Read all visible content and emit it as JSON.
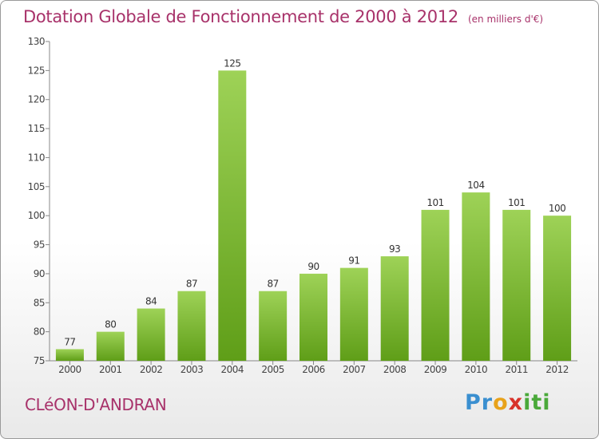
{
  "chart_data": {
    "type": "bar",
    "title": "Dotation Globale de Fonctionnement de 2000 à 2012",
    "subtitle": "(en milliers d'€)",
    "categories": [
      "2000",
      "2001",
      "2002",
      "2003",
      "2004",
      "2005",
      "2006",
      "2007",
      "2008",
      "2009",
      "2010",
      "2011",
      "2012"
    ],
    "values": [
      77,
      80,
      84,
      87,
      125,
      87,
      90,
      91,
      93,
      101,
      104,
      101,
      100
    ],
    "data_labels": [
      "77",
      "80",
      "84",
      "87",
      "125",
      "87",
      "90",
      "91",
      "93",
      "101",
      "104",
      "101",
      "100"
    ],
    "yticks": [
      75,
      80,
      85,
      90,
      95,
      100,
      105,
      110,
      115,
      120,
      125,
      130
    ],
    "ylim": [
      75,
      130
    ],
    "xlabel": "",
    "ylabel": "",
    "grid": false,
    "bar_color_top": "#9ed257",
    "bar_color_bottom": "#5f9e18"
  },
  "commune_name": "CLéON-D'ANDRAN",
  "logo": {
    "part1": "Pr",
    "part2": "o",
    "part3": "x",
    "part4": "iti"
  }
}
